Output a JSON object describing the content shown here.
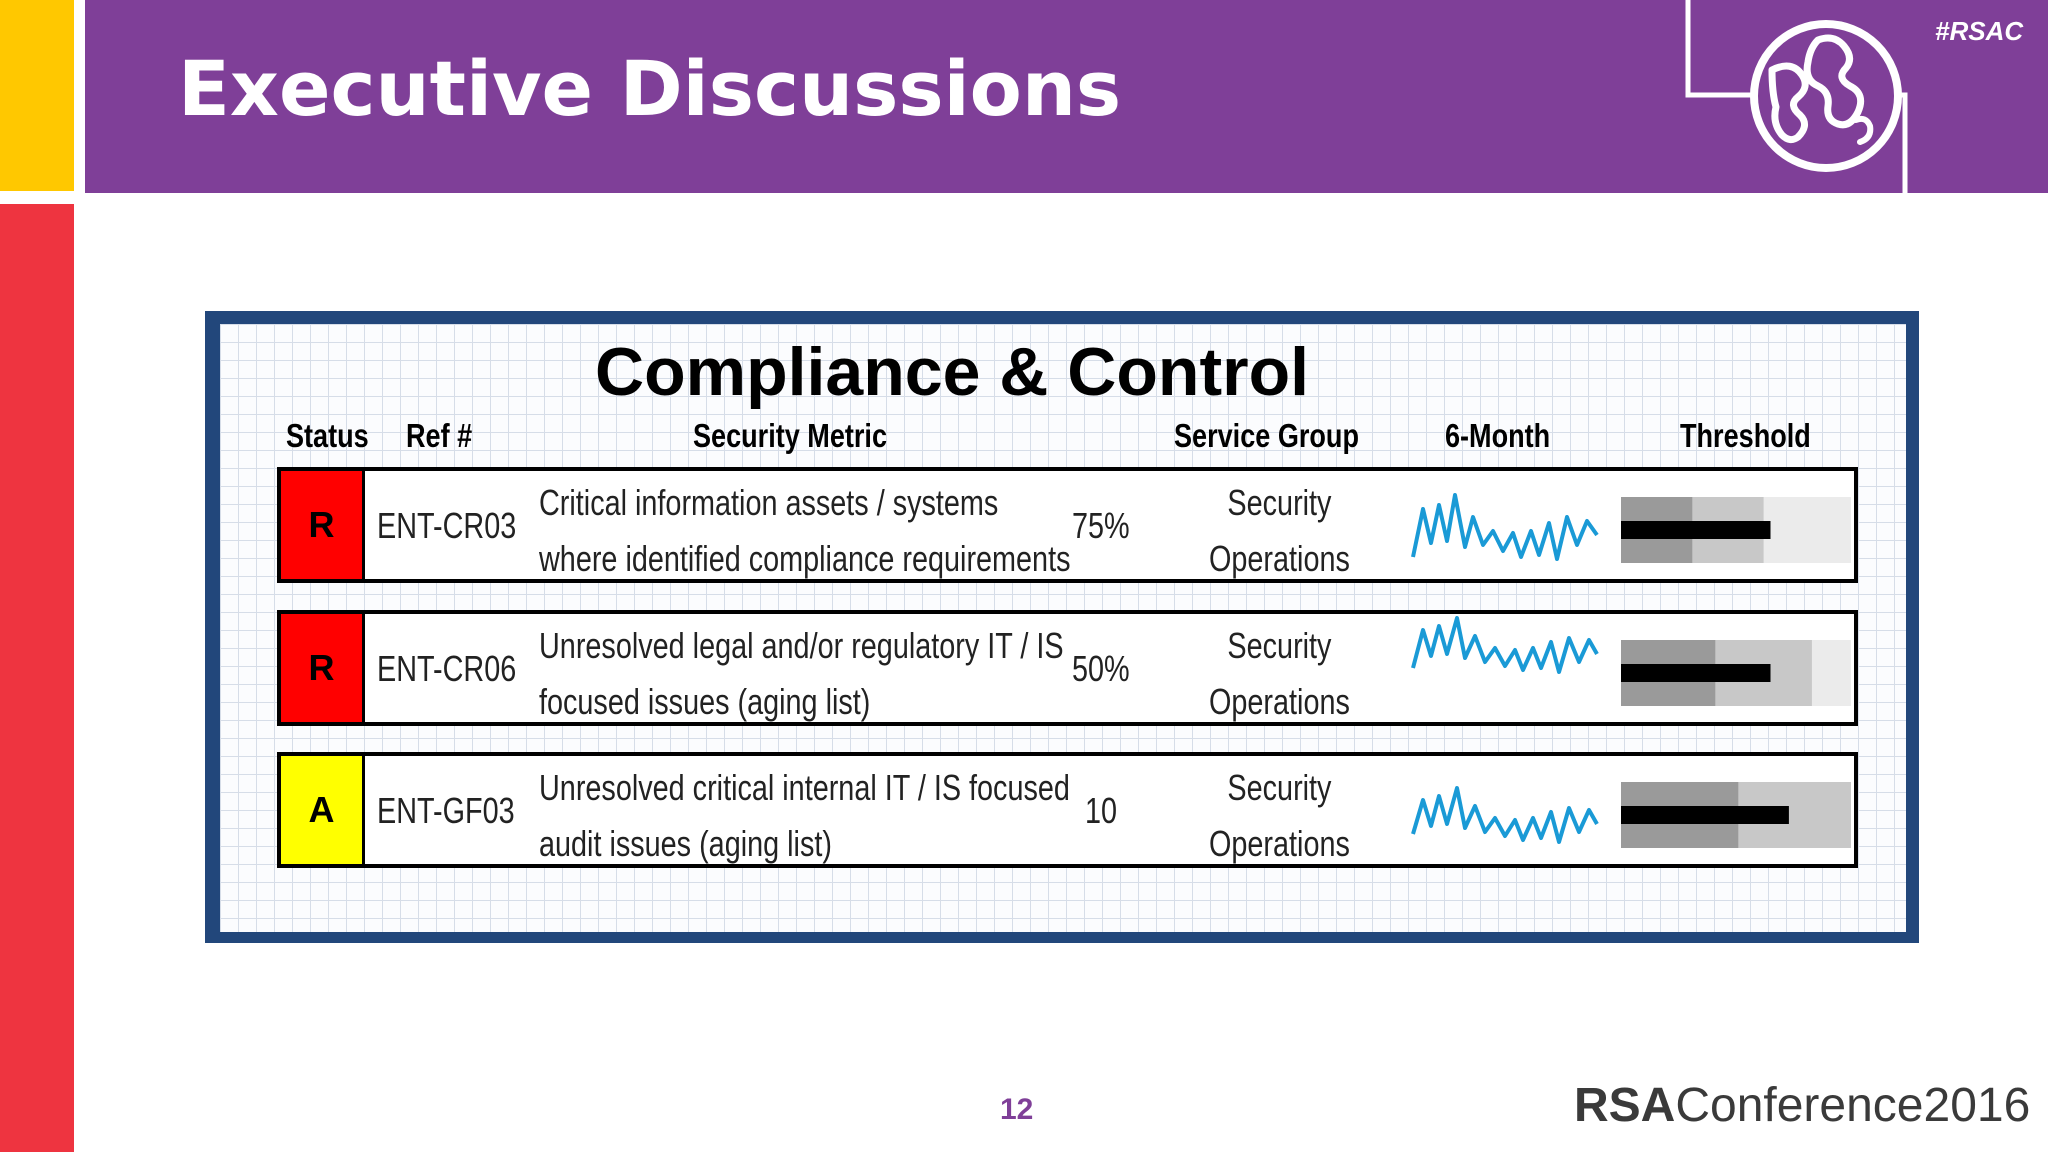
{
  "slide": {
    "title": "Executive Discussions",
    "hashtag": "#RSAC",
    "page_number": "12",
    "brand_bold": "RSA",
    "brand_rest": "Conference2016"
  },
  "colors": {
    "purple": "#7f3f98",
    "yellow": "#ffc800",
    "red": "#ee3440",
    "navy": "#22477b"
  },
  "dashboard": {
    "title": "Compliance & Control",
    "headers": {
      "status": "Status",
      "ref": "Ref #",
      "metric": "Security Metric",
      "service": "Service Group",
      "trend": "6-Month",
      "threshold": "Threshold"
    },
    "rows": [
      {
        "status": "R",
        "status_color": "#ff0000",
        "ref": "ENT-CR03",
        "metric_line1": "Critical information assets / systems",
        "metric_line2": "where identified compliance requirements",
        "value": "75%",
        "service_line1": "Security",
        "service_line2": "Operations",
        "threshold_bands": [
          0.31,
          0.62,
          1.0
        ],
        "threshold_actual": 0.65
      },
      {
        "status": "R",
        "status_color": "#ff0000",
        "ref": "ENT-CR06",
        "metric_line1": "Unresolved legal and/or regulatory IT / IS",
        "metric_line2": "focused issues (aging list)",
        "value": "50%",
        "service_line1": "Security",
        "service_line2": "Operations",
        "threshold_bands": [
          0.41,
          0.83,
          1.0
        ],
        "threshold_actual": 0.65
      },
      {
        "status": "A",
        "status_color": "#ffff00",
        "ref": "ENT-GF03",
        "metric_line1": "Unresolved critical internal IT / IS focused",
        "metric_line2": "audit issues (aging list)",
        "value": "10",
        "service_line1": "Security",
        "service_line2": "Operations",
        "threshold_bands": [
          0.51,
          1.0,
          1.0
        ],
        "threshold_actual": 0.73
      }
    ]
  }
}
